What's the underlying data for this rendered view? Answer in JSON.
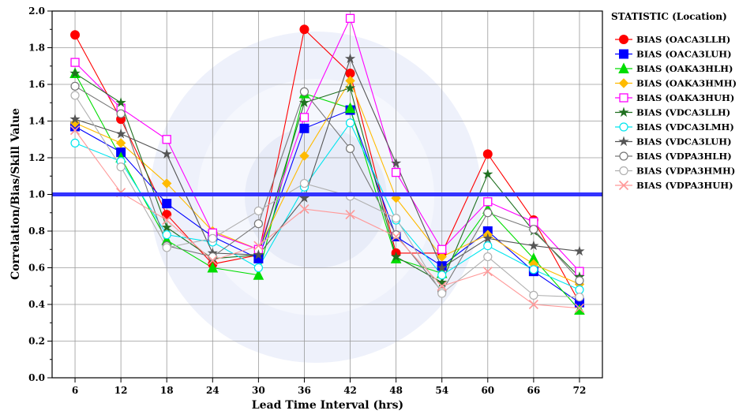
{
  "chart_data": {
    "type": "line",
    "title": "",
    "xlabel": "Lead Time Interval (hrs)",
    "ylabel": "Correlation/Bias/Skill Value",
    "x": [
      6,
      12,
      18,
      24,
      30,
      36,
      42,
      48,
      54,
      60,
      66,
      72
    ],
    "x_tick_labels": [
      "6",
      "12",
      "18",
      "24",
      "30",
      "36",
      "42",
      "48",
      "54",
      "60",
      "66",
      "72"
    ],
    "ylim": [
      0.0,
      2.0
    ],
    "y_ticks": [
      0.0,
      0.2,
      0.4,
      0.6,
      0.8,
      1.0,
      1.2,
      1.4,
      1.6,
      1.8,
      2.0
    ],
    "y_tick_labels": [
      "0.0",
      "0.2",
      "0.4",
      "0.6",
      "0.8",
      "1.0",
      "1.2",
      "1.4",
      "1.6",
      "1.8",
      "2.0"
    ],
    "grid": true,
    "legend_title": "STATISTIC (Location)",
    "legend_position": "right",
    "reference_line": {
      "y": 1.0,
      "color": "#3333ff"
    },
    "series": [
      {
        "name": "BIAS (OACA3LLH)",
        "color": "#ff0000",
        "marker": "circle",
        "values": [
          1.87,
          1.41,
          0.89,
          0.62,
          0.67,
          1.9,
          1.66,
          0.68,
          0.68,
          1.22,
          0.86,
          0.41
        ]
      },
      {
        "name": "BIAS (OACA3LUH)",
        "color": "#0000ff",
        "marker": "square",
        "values": [
          1.37,
          1.23,
          0.95,
          0.77,
          0.65,
          1.36,
          1.46,
          0.77,
          0.61,
          0.8,
          0.58,
          0.41
        ]
      },
      {
        "name": "BIAS (OAKA3HLH)",
        "color": "#00dd00",
        "marker": "triangle",
        "values": [
          1.66,
          1.2,
          0.75,
          0.6,
          0.56,
          1.55,
          1.47,
          0.65,
          0.57,
          0.92,
          0.65,
          0.37
        ]
      },
      {
        "name": "BIAS (OAKA3HMH)",
        "color": "#ffbb00",
        "marker": "diamond",
        "values": [
          1.39,
          1.28,
          1.06,
          0.8,
          0.7,
          1.21,
          1.62,
          0.98,
          0.66,
          0.78,
          0.62,
          0.51
        ]
      },
      {
        "name": "BIAS (OAKA3HUH)",
        "color": "#ff00ff",
        "marker": "square-open",
        "values": [
          1.72,
          1.47,
          1.3,
          0.79,
          0.7,
          1.42,
          1.96,
          1.12,
          0.7,
          0.96,
          0.85,
          0.58
        ]
      },
      {
        "name": "BIAS (VDCA3LLH)",
        "color": "#207020",
        "marker": "star",
        "values": [
          1.66,
          1.5,
          0.82,
          0.65,
          0.67,
          1.5,
          1.58,
          0.66,
          0.52,
          1.11,
          0.8,
          0.55
        ]
      },
      {
        "name": "BIAS (VDCA3LMH)",
        "color": "#00e5ee",
        "marker": "circle-open",
        "values": [
          1.28,
          1.18,
          0.78,
          0.74,
          0.6,
          1.04,
          1.39,
          0.86,
          0.56,
          0.72,
          0.59,
          0.48
        ]
      },
      {
        "name": "BIAS (VDCA3LUH)",
        "color": "#555555",
        "marker": "star",
        "values": [
          1.41,
          1.33,
          1.22,
          0.68,
          0.67,
          0.98,
          1.74,
          1.17,
          0.6,
          0.76,
          0.72,
          0.69
        ]
      },
      {
        "name": "BIAS (VDPA3HLH)",
        "color": "#777777",
        "marker": "circle-open",
        "values": [
          1.59,
          1.44,
          0.72,
          0.66,
          0.84,
          1.56,
          1.25,
          0.78,
          0.47,
          0.9,
          0.81,
          0.53
        ]
      },
      {
        "name": "BIAS (VDPA3HMH)",
        "color": "#b0b0b0",
        "marker": "circle-open",
        "values": [
          1.54,
          1.15,
          0.71,
          0.76,
          0.91,
          1.06,
          0.99,
          0.87,
          0.46,
          0.66,
          0.45,
          0.44
        ]
      },
      {
        "name": "BIAS (VDPA3HUH)",
        "color": "#ff9999",
        "marker": "x",
        "values": [
          1.35,
          1.01,
          0.86,
          0.64,
          0.72,
          0.92,
          0.89,
          0.77,
          0.5,
          0.58,
          0.4,
          0.38
        ]
      }
    ]
  }
}
